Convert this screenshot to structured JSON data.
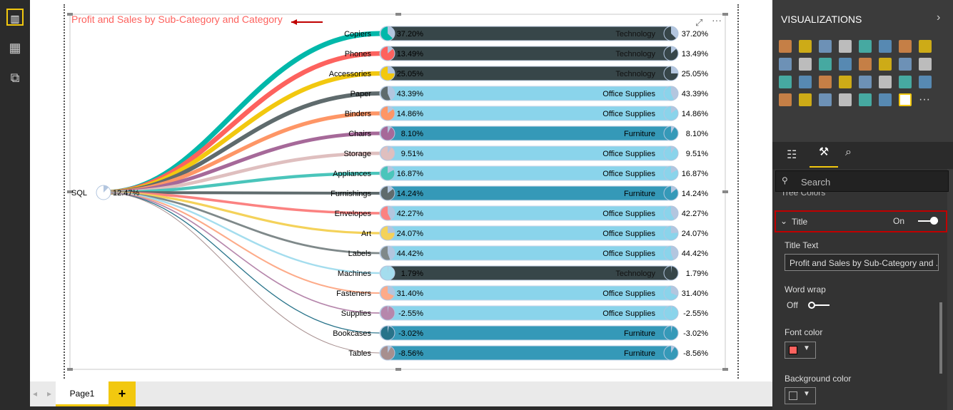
{
  "left_nav": [
    {
      "icon": "report-icon"
    },
    {
      "icon": "data-icon"
    },
    {
      "icon": "model-icon"
    }
  ],
  "visual": {
    "title": "Profit and Sales by Sub-Category and Category",
    "root": {
      "label": "SQL",
      "value": "12.47%",
      "value_num": 12.47
    },
    "rows": [
      {
        "sub": "Copiers",
        "sub_value": "37.20%",
        "pct": 37.2,
        "category": "Technology",
        "cat_value": "37.20%",
        "line_color": "#01b8aa"
      },
      {
        "sub": "Phones",
        "sub_value": "13.49%",
        "pct": 13.49,
        "category": "Technology",
        "cat_value": "13.49%",
        "line_color": "#fd625e"
      },
      {
        "sub": "Accessories",
        "sub_value": "25.05%",
        "pct": 25.05,
        "category": "Technology",
        "cat_value": "25.05%",
        "line_color": "#f2c80f"
      },
      {
        "sub": "Paper",
        "sub_value": "43.39%",
        "pct": 43.39,
        "category": "Office Supplies",
        "cat_value": "43.39%",
        "line_color": "#5f6b6d"
      },
      {
        "sub": "Binders",
        "sub_value": "14.86%",
        "pct": 14.86,
        "category": "Office Supplies",
        "cat_value": "14.86%",
        "line_color": "#fe9666"
      },
      {
        "sub": "Chairs",
        "sub_value": "8.10%",
        "pct": 8.1,
        "category": "Furniture",
        "cat_value": "8.10%",
        "line_color": "#a66999"
      },
      {
        "sub": "Storage",
        "sub_value": "9.51%",
        "pct": 9.51,
        "category": "Office Supplies",
        "cat_value": "9.51%",
        "line_color": "#dfbfbf"
      },
      {
        "sub": "Appliances",
        "sub_value": "16.87%",
        "pct": 16.87,
        "category": "Office Supplies",
        "cat_value": "16.87%",
        "line_color": "#4ac5bb"
      },
      {
        "sub": "Furnishings",
        "sub_value": "14.24%",
        "pct": 14.24,
        "category": "Furniture",
        "cat_value": "14.24%",
        "line_color": "#5f6b6d"
      },
      {
        "sub": "Envelopes",
        "sub_value": "42.27%",
        "pct": 42.27,
        "category": "Office Supplies",
        "cat_value": "42.27%",
        "line_color": "#fb8281"
      },
      {
        "sub": "Art",
        "sub_value": "24.07%",
        "pct": 24.07,
        "category": "Office Supplies",
        "cat_value": "24.07%",
        "line_color": "#f4d25a"
      },
      {
        "sub": "Labels",
        "sub_value": "44.42%",
        "pct": 44.42,
        "category": "Office Supplies",
        "cat_value": "44.42%",
        "line_color": "#7f898a"
      },
      {
        "sub": "Machines",
        "sub_value": "1.79%",
        "pct": 1.79,
        "category": "Technology",
        "cat_value": "1.79%",
        "line_color": "#a4ddee"
      },
      {
        "sub": "Fasteners",
        "sub_value": "31.40%",
        "pct": 31.4,
        "category": "Office Supplies",
        "cat_value": "31.40%",
        "line_color": "#fdab89"
      },
      {
        "sub": "Supplies",
        "sub_value": "-2.55%",
        "pct": -2.55,
        "category": "Office Supplies",
        "cat_value": "-2.55%",
        "line_color": "#b687ac"
      },
      {
        "sub": "Bookcases",
        "sub_value": "-3.02%",
        "pct": -3.02,
        "category": "Furniture",
        "cat_value": "-3.02%",
        "line_color": "#28738a"
      },
      {
        "sub": "Tables",
        "sub_value": "-8.56%",
        "pct": -8.56,
        "category": "Furniture",
        "cat_value": "-8.56%",
        "line_color": "#a78f8f"
      }
    ],
    "category_colors": {
      "Technology": "#374649",
      "Office Supplies": "#8ad4eb",
      "Furniture": "#3599b8"
    },
    "title_color": "#fd625e",
    "arrow_color": "#c00000"
  },
  "pages": {
    "tabs": [
      "Page1"
    ],
    "add": "+"
  },
  "visualizations": {
    "header": "VISUALIZATIONS",
    "more": "···"
  },
  "format": {
    "search_placeholder": "Search",
    "tree_colors": "Tree Colors",
    "title_section": "Title",
    "title_toggle": "On",
    "title_text_label": "Title Text",
    "title_text_value": "Profit and Sales by Sub-Category and ...",
    "word_wrap_label": "Word wrap",
    "word_wrap_value": "Off",
    "font_color_label": "Font color",
    "font_color": "#fd625e",
    "background_color_label": "Background color",
    "background_color": "#333333"
  }
}
